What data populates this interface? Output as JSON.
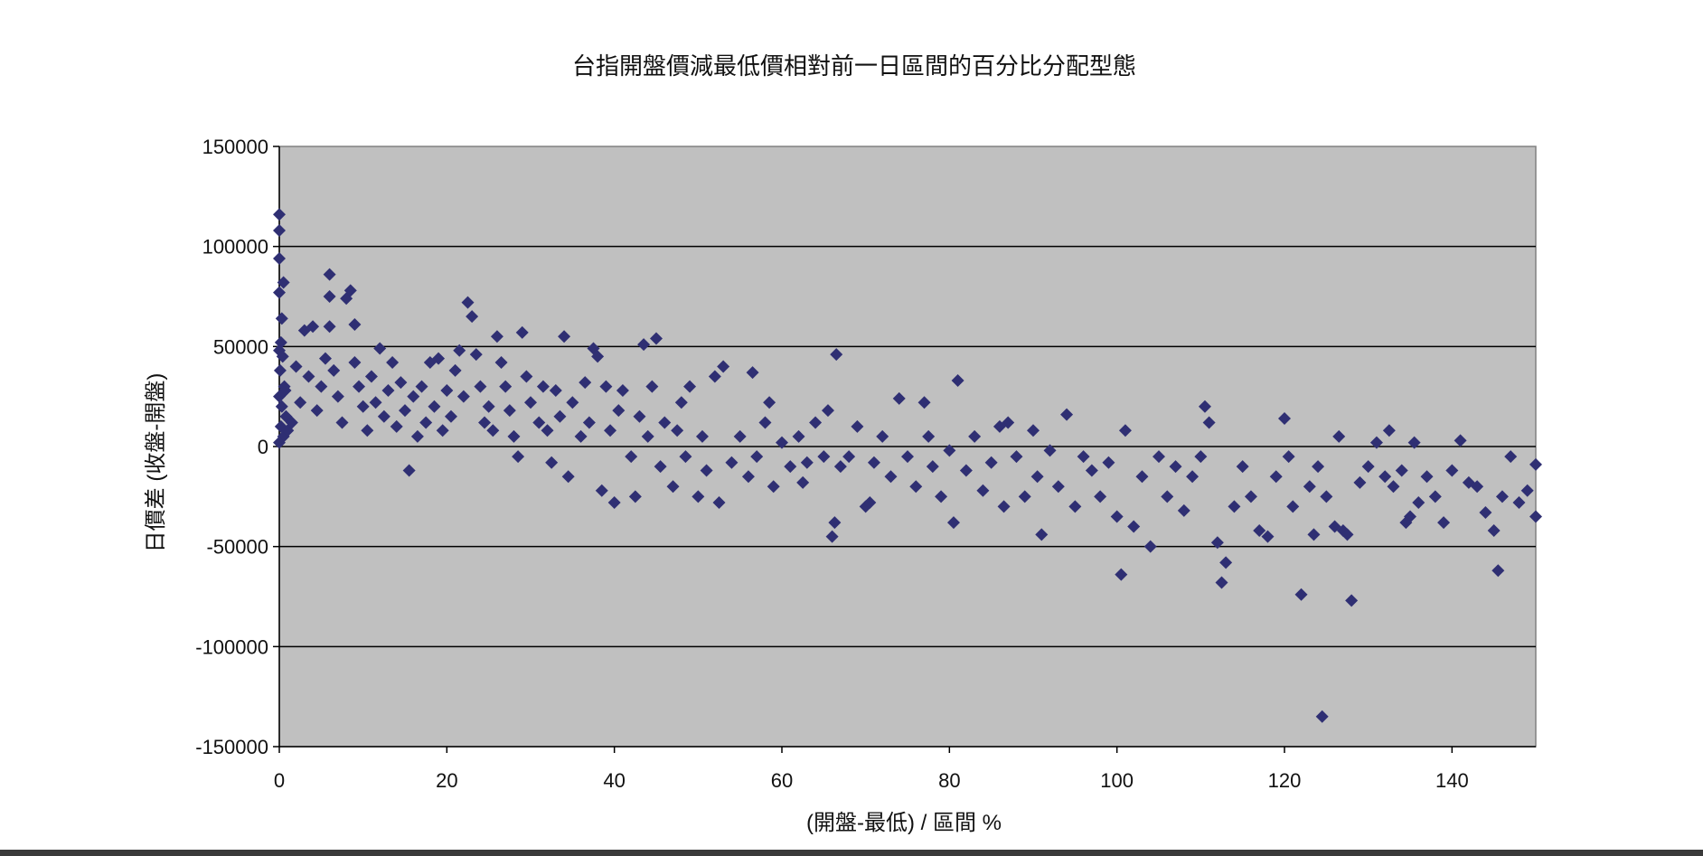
{
  "chart_data": {
    "type": "scatter",
    "title": "台指開盤價減最低價相對前一日區間的百分比分配型態",
    "xlabel": "(開盤-最低) / 區間 %",
    "ylabel": "日價差 (收盤-開盤)",
    "xlim": [
      0,
      150
    ],
    "ylim": [
      -150000,
      150000
    ],
    "x_ticks": [
      "0",
      "20",
      "40",
      "60",
      "80",
      "100",
      "120",
      "140"
    ],
    "y_ticks": [
      "150000",
      "100000",
      "50000",
      "0",
      "-50000",
      "-100000",
      "-150000"
    ],
    "grid": "horizontal",
    "legend": "none",
    "colors": {
      "plot_background": "#c0c0c0",
      "marker": "#2f2f73",
      "gridline": "#000000"
    },
    "series": [
      {
        "marker": "diamond",
        "points": [
          [
            0,
            116000
          ],
          [
            0,
            108000
          ],
          [
            0,
            94000
          ],
          [
            0.5,
            82000
          ],
          [
            0,
            77000
          ],
          [
            0.3,
            64000
          ],
          [
            0.2,
            52000
          ],
          [
            0,
            48000
          ],
          [
            0.4,
            45000
          ],
          [
            0.1,
            38000
          ],
          [
            0.6,
            30000
          ],
          [
            0,
            25000
          ],
          [
            0.3,
            20000
          ],
          [
            0.8,
            15000
          ],
          [
            0.2,
            10000
          ],
          [
            0.5,
            5000
          ],
          [
            0,
            2000
          ],
          [
            1,
            8000
          ],
          [
            1.5,
            12000
          ],
          [
            0.7,
            28000
          ],
          [
            2,
            40000
          ],
          [
            2.5,
            22000
          ],
          [
            3,
            58000
          ],
          [
            3.5,
            35000
          ],
          [
            4,
            60000
          ],
          [
            4.5,
            18000
          ],
          [
            5,
            30000
          ],
          [
            5.5,
            44000
          ],
          [
            6,
            86000
          ],
          [
            6,
            75000
          ],
          [
            6,
            60000
          ],
          [
            6.5,
            38000
          ],
          [
            7,
            25000
          ],
          [
            7.5,
            12000
          ],
          [
            8,
            74000
          ],
          [
            8.5,
            78000
          ],
          [
            9,
            61000
          ],
          [
            9,
            42000
          ],
          [
            9.5,
            30000
          ],
          [
            10,
            20000
          ],
          [
            10.5,
            8000
          ],
          [
            11,
            35000
          ],
          [
            11.5,
            22000
          ],
          [
            12,
            49000
          ],
          [
            12.5,
            15000
          ],
          [
            13,
            28000
          ],
          [
            13.5,
            42000
          ],
          [
            14,
            10000
          ],
          [
            14.5,
            32000
          ],
          [
            15,
            18000
          ],
          [
            15.5,
            -12000
          ],
          [
            16,
            25000
          ],
          [
            16.5,
            5000
          ],
          [
            17,
            30000
          ],
          [
            17.5,
            12000
          ],
          [
            18,
            42000
          ],
          [
            18.5,
            20000
          ],
          [
            19,
            44000
          ],
          [
            19.5,
            8000
          ],
          [
            20,
            28000
          ],
          [
            20.5,
            15000
          ],
          [
            21,
            38000
          ],
          [
            21.5,
            48000
          ],
          [
            22,
            25000
          ],
          [
            22.5,
            72000
          ],
          [
            23,
            65000
          ],
          [
            23.5,
            46000
          ],
          [
            24,
            30000
          ],
          [
            24.5,
            12000
          ],
          [
            25,
            20000
          ],
          [
            25.5,
            8000
          ],
          [
            26,
            55000
          ],
          [
            26.5,
            42000
          ],
          [
            27,
            30000
          ],
          [
            27.5,
            18000
          ],
          [
            28,
            5000
          ],
          [
            28.5,
            -5000
          ],
          [
            29,
            57000
          ],
          [
            29.5,
            35000
          ],
          [
            30,
            22000
          ],
          [
            31,
            12000
          ],
          [
            31.5,
            30000
          ],
          [
            32,
            8000
          ],
          [
            32.5,
            -8000
          ],
          [
            33,
            28000
          ],
          [
            33.5,
            15000
          ],
          [
            34,
            55000
          ],
          [
            34.5,
            -15000
          ],
          [
            35,
            22000
          ],
          [
            36,
            5000
          ],
          [
            36.5,
            32000
          ],
          [
            37,
            12000
          ],
          [
            37.5,
            49000
          ],
          [
            38,
            45000
          ],
          [
            38.5,
            -22000
          ],
          [
            39,
            30000
          ],
          [
            39.5,
            8000
          ],
          [
            40,
            -28000
          ],
          [
            40.5,
            18000
          ],
          [
            41,
            28000
          ],
          [
            42,
            -5000
          ],
          [
            42.5,
            -25000
          ],
          [
            43,
            15000
          ],
          [
            43.5,
            51000
          ],
          [
            44,
            5000
          ],
          [
            44.5,
            30000
          ],
          [
            45,
            54000
          ],
          [
            45.5,
            -10000
          ],
          [
            46,
            12000
          ],
          [
            47,
            -20000
          ],
          [
            47.5,
            8000
          ],
          [
            48,
            22000
          ],
          [
            48.5,
            -5000
          ],
          [
            49,
            30000
          ],
          [
            50,
            -25000
          ],
          [
            50.5,
            5000
          ],
          [
            51,
            -12000
          ],
          [
            52,
            35000
          ],
          [
            52.5,
            -28000
          ],
          [
            53,
            40000
          ],
          [
            54,
            -8000
          ],
          [
            55,
            5000
          ],
          [
            56,
            -15000
          ],
          [
            56.5,
            37000
          ],
          [
            57,
            -5000
          ],
          [
            58,
            12000
          ],
          [
            58.5,
            22000
          ],
          [
            59,
            -20000
          ],
          [
            60,
            2000
          ],
          [
            61,
            -10000
          ],
          [
            62,
            5000
          ],
          [
            62.5,
            -18000
          ],
          [
            63,
            -8000
          ],
          [
            64,
            12000
          ],
          [
            65,
            -5000
          ],
          [
            65.5,
            18000
          ],
          [
            66,
            -45000
          ],
          [
            66.3,
            -38000
          ],
          [
            66.5,
            46000
          ],
          [
            67,
            -10000
          ],
          [
            68,
            -5000
          ],
          [
            69,
            10000
          ],
          [
            70,
            -30000
          ],
          [
            70.5,
            -28000
          ],
          [
            71,
            -8000
          ],
          [
            72,
            5000
          ],
          [
            73,
            -15000
          ],
          [
            74,
            24000
          ],
          [
            75,
            -5000
          ],
          [
            76,
            -20000
          ],
          [
            77,
            22000
          ],
          [
            77.5,
            5000
          ],
          [
            78,
            -10000
          ],
          [
            79,
            -25000
          ],
          [
            80,
            -2000
          ],
          [
            80.5,
            -38000
          ],
          [
            81,
            33000
          ],
          [
            82,
            -12000
          ],
          [
            83,
            5000
          ],
          [
            84,
            -22000
          ],
          [
            85,
            -8000
          ],
          [
            86,
            10000
          ],
          [
            86.5,
            -30000
          ],
          [
            87,
            12000
          ],
          [
            88,
            -5000
          ],
          [
            89,
            -25000
          ],
          [
            90,
            8000
          ],
          [
            90.5,
            -15000
          ],
          [
            91,
            -44000
          ],
          [
            92,
            -2000
          ],
          [
            93,
            -20000
          ],
          [
            94,
            16000
          ],
          [
            95,
            -30000
          ],
          [
            96,
            -5000
          ],
          [
            97,
            -12000
          ],
          [
            98,
            -25000
          ],
          [
            99,
            -8000
          ],
          [
            100,
            -35000
          ],
          [
            100.5,
            -64000
          ],
          [
            101,
            8000
          ],
          [
            102,
            -40000
          ],
          [
            103,
            -15000
          ],
          [
            104,
            -50000
          ],
          [
            105,
            -5000
          ],
          [
            106,
            -25000
          ],
          [
            107,
            -10000
          ],
          [
            108,
            -32000
          ],
          [
            109,
            -15000
          ],
          [
            110,
            -5000
          ],
          [
            110.5,
            20000
          ],
          [
            111,
            12000
          ],
          [
            112,
            -48000
          ],
          [
            112.5,
            -68000
          ],
          [
            113,
            -58000
          ],
          [
            114,
            -30000
          ],
          [
            115,
            -10000
          ],
          [
            116,
            -25000
          ],
          [
            117,
            -42000
          ],
          [
            118,
            -45000
          ],
          [
            119,
            -15000
          ],
          [
            120,
            14000
          ],
          [
            120.5,
            -5000
          ],
          [
            121,
            -30000
          ],
          [
            122,
            -74000
          ],
          [
            123,
            -20000
          ],
          [
            123.5,
            -44000
          ],
          [
            124,
            -10000
          ],
          [
            124.5,
            -135000
          ],
          [
            125,
            -25000
          ],
          [
            126,
            -40000
          ],
          [
            126.5,
            5000
          ],
          [
            127,
            -42000
          ],
          [
            127.5,
            -44000
          ],
          [
            128,
            -77000
          ],
          [
            129,
            -18000
          ],
          [
            130,
            -10000
          ],
          [
            131,
            2000
          ],
          [
            132,
            -15000
          ],
          [
            132.5,
            8000
          ],
          [
            133,
            -20000
          ],
          [
            134,
            -12000
          ],
          [
            134.5,
            -38000
          ],
          [
            135,
            -35000
          ],
          [
            135.5,
            2000
          ],
          [
            136,
            -28000
          ],
          [
            137,
            -15000
          ],
          [
            138,
            -25000
          ],
          [
            139,
            -38000
          ],
          [
            140,
            -12000
          ],
          [
            141,
            3000
          ],
          [
            142,
            -18000
          ],
          [
            143,
            -20000
          ],
          [
            144,
            -33000
          ],
          [
            145,
            -42000
          ],
          [
            145.5,
            -62000
          ],
          [
            146,
            -25000
          ],
          [
            147,
            -5000
          ],
          [
            148,
            -28000
          ],
          [
            149,
            -22000
          ],
          [
            150,
            -35000
          ],
          [
            150,
            -9000
          ]
        ]
      }
    ]
  }
}
